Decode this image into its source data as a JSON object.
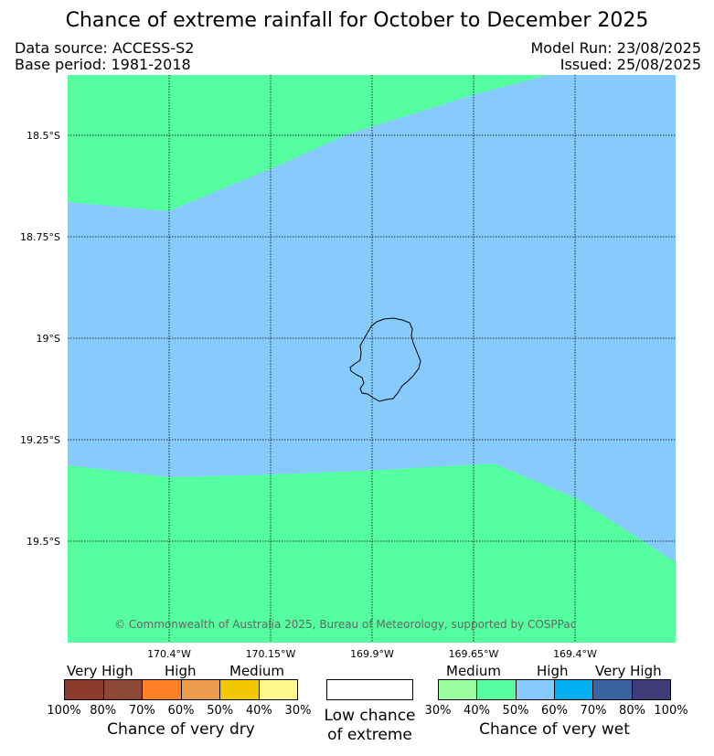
{
  "header": {
    "title": "Chance of extreme rainfall for October to December 2025",
    "data_source": "Data source: ACCESS-S2",
    "base_period": "Base period: 1981-2018",
    "model_run": "Model Run: 23/08/2025",
    "issued": "Issued: 25/08/2025"
  },
  "map": {
    "lat_labels": [
      "18.5°S",
      "18.75°S",
      "19°S",
      "19.25°S",
      "19.5°S"
    ],
    "lon_labels": [
      "170.4°W",
      "170.15°W",
      "169.9°W",
      "169.65°W",
      "169.4°W"
    ],
    "copyright": "© Commonwealth of Australia 2025, Bureau of Meteorology, supported by COSPPac",
    "colors": {
      "medium_wet": "#55ff9f",
      "high_wet": "#87cafc",
      "coastline": "#000000"
    }
  },
  "legend": {
    "dry": {
      "categories": [
        "Very High",
        "High",
        "Medium"
      ],
      "ticks": [
        "100%",
        "80%",
        "70%",
        "60%",
        "50%",
        "40%",
        "30%"
      ],
      "colors": [
        "#8b3a2e",
        "#8c4a36",
        "#ff8027",
        "#ed9b4c",
        "#f0c800",
        "#fff78c"
      ],
      "caption": "Chance of very dry"
    },
    "neutral": {
      "caption_line1": "Low chance",
      "caption_line2": "of extreme",
      "color": "#ffffff"
    },
    "wet": {
      "categories": [
        "Medium",
        "High",
        "Very High"
      ],
      "ticks": [
        "30%",
        "40%",
        "50%",
        "60%",
        "70%",
        "80%",
        "100%"
      ],
      "colors": [
        "#99ff9e",
        "#55ff9f",
        "#87cafc",
        "#00b0f0",
        "#3a639f",
        "#403c79"
      ],
      "caption": "Chance of very wet"
    }
  }
}
